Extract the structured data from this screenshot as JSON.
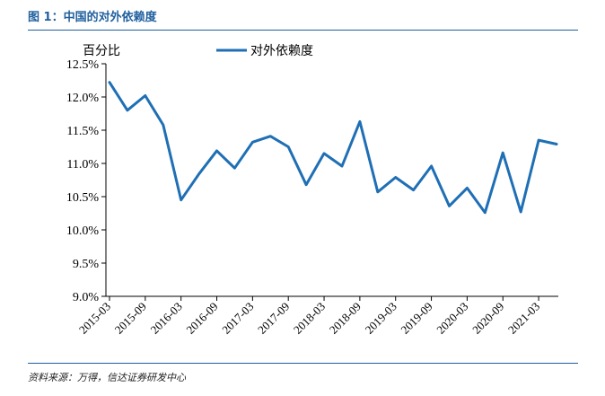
{
  "header": {
    "title": "图 1：中国的对外依赖度"
  },
  "footer": {
    "source": "资料来源：万得，信达证券研发中心"
  },
  "chart_data": {
    "type": "line",
    "ylabel": "百分比",
    "y_unit": "%",
    "ylim": [
      9.0,
      12.5
    ],
    "y_ticks": [
      "12.5%",
      "12.0%",
      "11.5%",
      "11.0%",
      "10.5%",
      "10.0%",
      "9.5%",
      "9.0%"
    ],
    "x_tick_labels": [
      "2015-03",
      "2015-09",
      "2016-03",
      "2016-09",
      "2017-03",
      "2017-09",
      "2018-03",
      "2018-09",
      "2019-03",
      "2019-09",
      "2020-03",
      "2020-09",
      "2021-03"
    ],
    "x": [
      "2015-03",
      "2015-06",
      "2015-09",
      "2015-12",
      "2016-03",
      "2016-06",
      "2016-09",
      "2016-12",
      "2017-03",
      "2017-06",
      "2017-09",
      "2017-12",
      "2018-03",
      "2018-06",
      "2018-09",
      "2018-12",
      "2019-03",
      "2019-06",
      "2019-09",
      "2019-12",
      "2020-03",
      "2020-06",
      "2020-09",
      "2020-12",
      "2021-03",
      "2021-06"
    ],
    "series": [
      {
        "name": "对外依赖度",
        "color": "#1f6fb5",
        "values": [
          12.22,
          11.8,
          12.02,
          11.58,
          10.45,
          10.84,
          11.19,
          10.93,
          11.32,
          11.41,
          11.25,
          10.68,
          11.15,
          10.96,
          11.63,
          10.57,
          10.79,
          10.6,
          10.96,
          10.36,
          10.63,
          10.26,
          11.16,
          10.27,
          11.35,
          11.29
        ]
      }
    ],
    "legend_position": "top-center",
    "grid": false
  }
}
